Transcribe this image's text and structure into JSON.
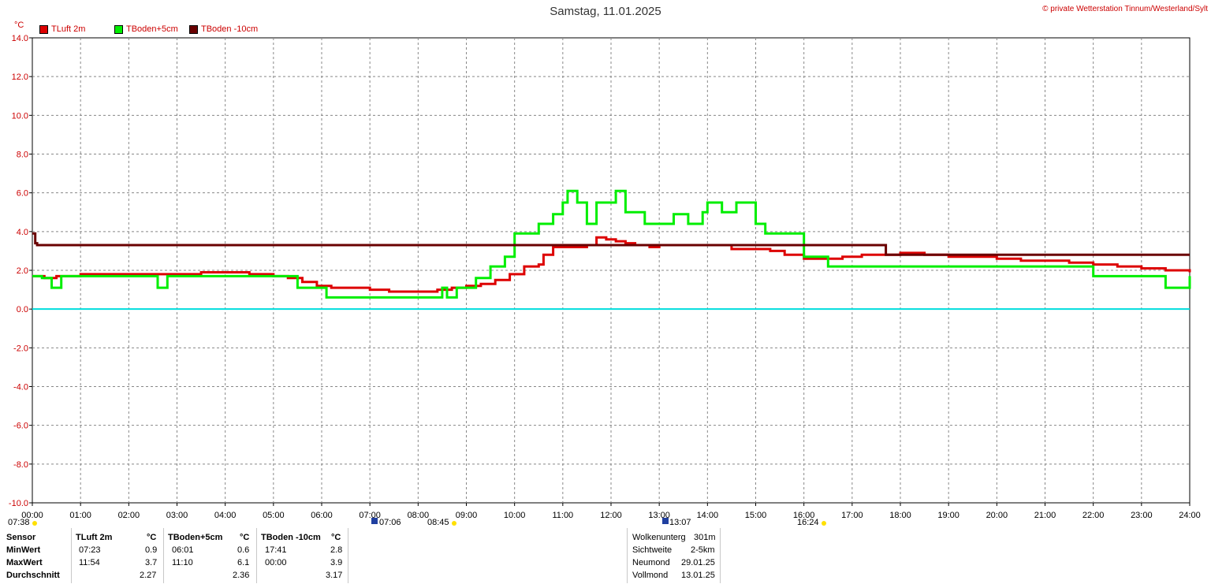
{
  "header": {
    "title": "Samstag, 11.01.2025",
    "copyright": "© private Wetterstation Tinnum/Westerland/Sylt",
    "unit": "°C"
  },
  "legend": [
    {
      "label": "TLuft 2m",
      "color": "#dd0000"
    },
    {
      "label": "TBoden+5cm",
      "color": "#00ee00"
    },
    {
      "label": "TBoden -10cm",
      "color": "#6a0000"
    }
  ],
  "chart_data": {
    "type": "line",
    "title": "Samstag, 11.01.2025",
    "ylabel": "°C",
    "ylim": [
      -10,
      14
    ],
    "xlim": [
      0,
      24
    ],
    "grid": true,
    "legend_position": "top-left",
    "y_ticks": [
      "14.0",
      "12.0",
      "10.0",
      "8.0",
      "6.0",
      "4.0",
      "2.0",
      "0.0",
      "-2.0",
      "-4.0",
      "-6.0",
      "-8.0",
      "-10.0"
    ],
    "x_ticks": [
      "00:00",
      "01:00",
      "02:00",
      "03:00",
      "04:00",
      "05:00",
      "06:00",
      "07:00",
      "08:00",
      "09:00",
      "10:00",
      "11:00",
      "12:00",
      "13:00",
      "14:00",
      "15:00",
      "16:00",
      "17:00",
      "18:00",
      "19:00",
      "20:00",
      "21:00",
      "22:00",
      "23:00",
      "24:00"
    ],
    "zero_line_color": "#00dddd",
    "series": [
      {
        "name": "TLuft 2m",
        "color": "#dd0000",
        "x": [
          0.0,
          0.25,
          0.5,
          1.0,
          1.5,
          2.0,
          2.5,
          3.0,
          3.2,
          3.5,
          4.0,
          4.5,
          5.0,
          5.3,
          5.6,
          5.9,
          6.2,
          6.5,
          7.0,
          7.4,
          7.7,
          8.0,
          8.4,
          8.7,
          9.0,
          9.3,
          9.6,
          9.9,
          10.2,
          10.5,
          10.6,
          10.8,
          11.0,
          11.2,
          11.5,
          11.7,
          11.9,
          12.1,
          12.3,
          12.5,
          12.8,
          13.0,
          13.2,
          13.5,
          14.0,
          14.5,
          15.0,
          15.3,
          15.6,
          16.0,
          16.4,
          16.8,
          17.2,
          17.6,
          18.0,
          18.5,
          19.0,
          19.5,
          20.0,
          20.5,
          21.0,
          21.5,
          22.0,
          22.5,
          23.0,
          23.5,
          24.0
        ],
        "y": [
          1.7,
          1.6,
          1.7,
          1.8,
          1.8,
          1.8,
          1.8,
          1.8,
          1.8,
          1.9,
          1.9,
          1.8,
          1.7,
          1.6,
          1.4,
          1.2,
          1.1,
          1.1,
          1.0,
          0.9,
          0.9,
          0.9,
          1.0,
          1.1,
          1.2,
          1.3,
          1.5,
          1.8,
          2.2,
          2.3,
          2.8,
          3.2,
          3.2,
          3.2,
          3.3,
          3.7,
          3.6,
          3.5,
          3.4,
          3.3,
          3.2,
          3.3,
          3.3,
          3.3,
          3.3,
          3.1,
          3.1,
          3.0,
          2.8,
          2.6,
          2.6,
          2.7,
          2.8,
          2.8,
          2.9,
          2.8,
          2.7,
          2.7,
          2.6,
          2.5,
          2.5,
          2.4,
          2.3,
          2.2,
          2.1,
          2.0,
          1.9
        ]
      },
      {
        "name": "TBoden+5cm",
        "color": "#00ee00",
        "x": [
          0.0,
          0.2,
          0.4,
          0.6,
          1.0,
          1.5,
          2.0,
          2.5,
          2.6,
          2.8,
          3.0,
          3.5,
          4.0,
          4.5,
          5.0,
          5.3,
          5.5,
          6.0,
          6.1,
          6.5,
          7.0,
          7.5,
          8.0,
          8.5,
          8.6,
          8.8,
          9.0,
          9.2,
          9.5,
          9.8,
          10.0,
          10.2,
          10.5,
          10.8,
          11.0,
          11.1,
          11.3,
          11.5,
          11.7,
          12.0,
          12.1,
          12.3,
          12.5,
          12.7,
          13.0,
          13.3,
          13.6,
          13.9,
          14.0,
          14.3,
          14.6,
          15.0,
          15.2,
          15.5,
          16.0,
          16.5,
          17.0,
          17.5,
          18.0,
          18.5,
          19.0,
          19.5,
          20.0,
          20.5,
          21.0,
          21.5,
          22.0,
          22.5,
          23.0,
          23.5,
          24.0
        ],
        "y": [
          1.7,
          1.6,
          1.1,
          1.7,
          1.7,
          1.7,
          1.7,
          1.7,
          1.1,
          1.7,
          1.7,
          1.7,
          1.7,
          1.7,
          1.7,
          1.7,
          1.1,
          1.1,
          0.6,
          0.6,
          0.6,
          0.6,
          0.6,
          1.1,
          0.6,
          1.1,
          1.1,
          1.6,
          2.2,
          2.7,
          3.9,
          3.9,
          4.4,
          4.9,
          5.5,
          6.1,
          5.5,
          4.4,
          5.5,
          5.5,
          6.1,
          5.0,
          5.0,
          4.4,
          4.4,
          4.9,
          4.4,
          5.0,
          5.5,
          5.0,
          5.5,
          4.4,
          3.9,
          3.9,
          2.7,
          2.2,
          2.2,
          2.2,
          2.2,
          2.2,
          2.2,
          2.2,
          2.2,
          2.2,
          2.2,
          2.2,
          1.7,
          1.7,
          1.7,
          1.1,
          1.7
        ]
      },
      {
        "name": "TBoden -10cm",
        "color": "#6a0000",
        "x": [
          0.0,
          0.03,
          0.06,
          0.1,
          1.0,
          2.0,
          3.0,
          4.0,
          5.0,
          6.0,
          7.0,
          8.0,
          9.0,
          10.0,
          11.0,
          12.0,
          13.0,
          14.0,
          15.0,
          16.0,
          17.0,
          17.68,
          17.7,
          18.0,
          19.0,
          20.0,
          21.0,
          22.0,
          23.0,
          24.0
        ],
        "y": [
          3.9,
          3.9,
          3.4,
          3.3,
          3.3,
          3.3,
          3.3,
          3.3,
          3.3,
          3.3,
          3.3,
          3.3,
          3.3,
          3.3,
          3.3,
          3.3,
          3.3,
          3.3,
          3.3,
          3.3,
          3.3,
          3.3,
          2.8,
          2.8,
          2.8,
          2.8,
          2.8,
          2.8,
          2.8,
          2.8
        ]
      }
    ]
  },
  "markers": {
    "sunrise_label": "08:45",
    "sunset_label": "16:24",
    "moonrise_label": "07:06",
    "moonset_label": "13:07",
    "left_label": "07:38"
  },
  "stats": {
    "row_labels": [
      "Sensor",
      "MinWert",
      "MaxWert",
      "Durchschnitt"
    ],
    "tluft": {
      "header": "TLuft 2m",
      "unit": "°C",
      "min_time": "07:23",
      "min_val": "0.9",
      "max_time": "11:54",
      "max_val": "3.7",
      "avg": "2.27"
    },
    "tboden5": {
      "header": "TBoden+5cm",
      "unit": "°C",
      "min_time": "06:01",
      "min_val": "0.6",
      "max_time": "11:10",
      "max_val": "6.1",
      "avg": "2.36"
    },
    "tboden10": {
      "header": "TBoden -10cm",
      "unit": "°C",
      "min_time": "17:41",
      "min_val": "2.8",
      "max_time": "00:00",
      "max_val": "3.9",
      "avg": "3.17"
    }
  },
  "weather": [
    {
      "label": "Wolkenunterg",
      "value": "301m"
    },
    {
      "label": "Sichtweite",
      "value": "2-5km"
    },
    {
      "label": "Neumond",
      "value": "29.01.25"
    },
    {
      "label": "Vollmond",
      "value": "13.01.25"
    }
  ]
}
